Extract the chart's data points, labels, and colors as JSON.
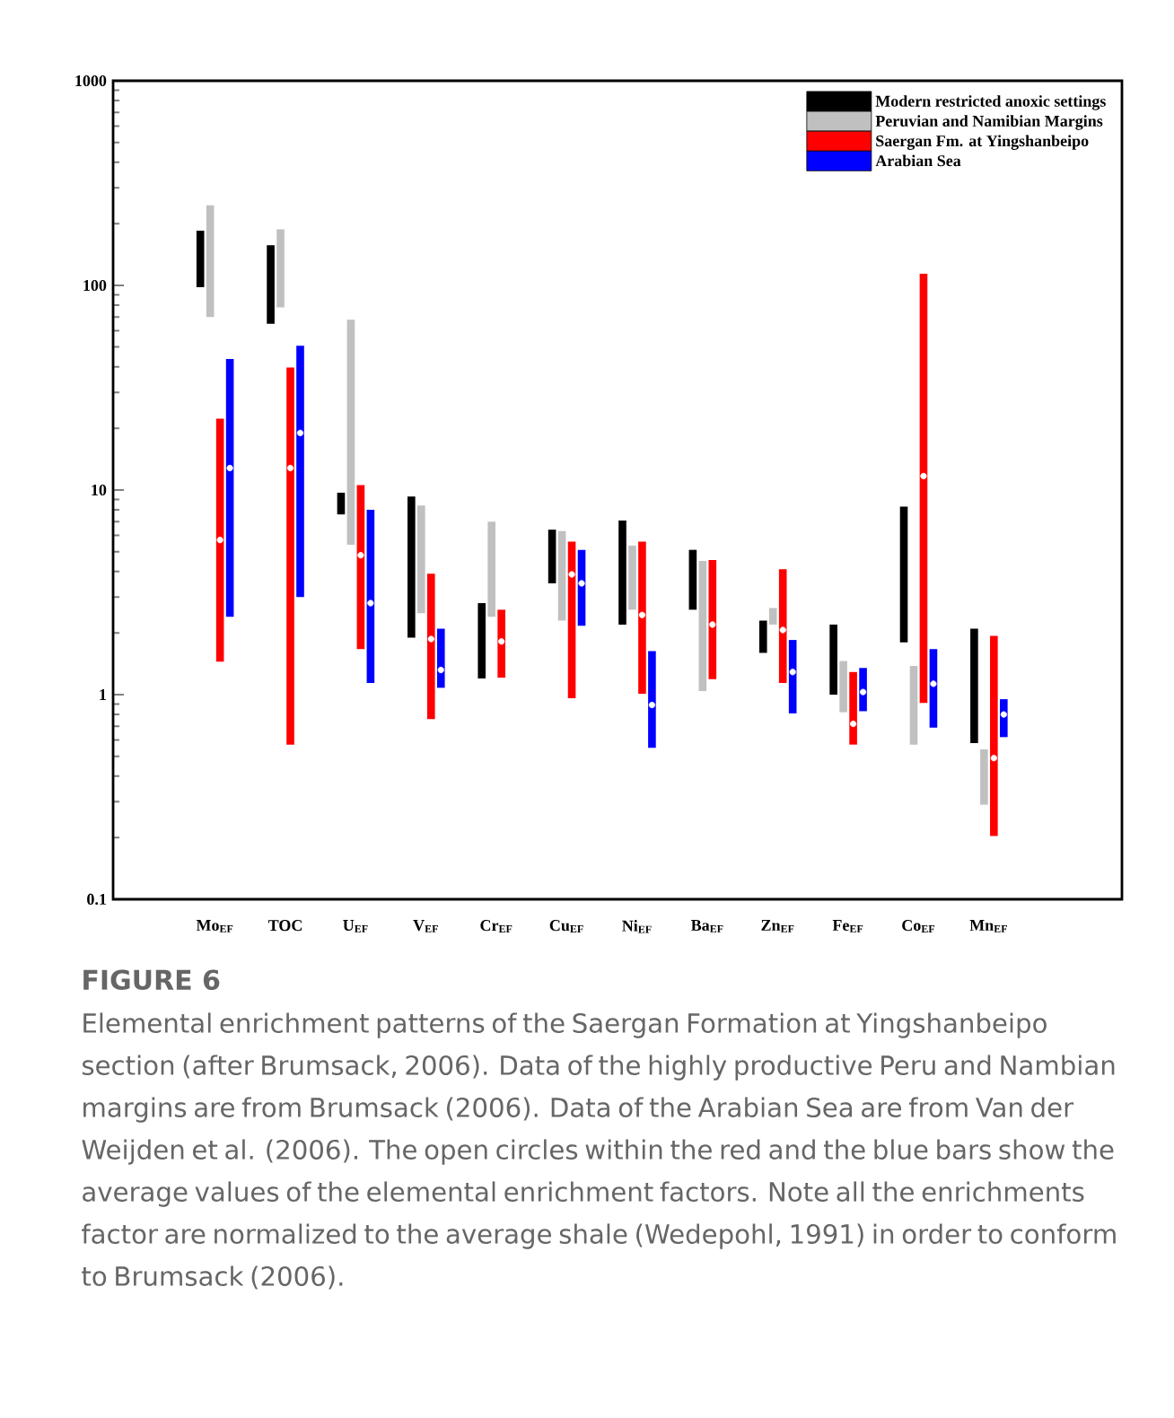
{
  "chart_data": {
    "type": "bar",
    "log": true,
    "ylim": [
      0.1,
      1000
    ],
    "yticks": [
      0.1,
      1,
      10,
      100,
      1000
    ],
    "legend": "top right",
    "grid": false,
    "categories": [
      "Mo$_{EF}$",
      "TOC",
      "U$_{EF}$",
      "V$_{EF}$",
      "Cr$_{EF}$",
      "Cu$_{EF}$",
      "Ni$_{EF}$",
      "Ba$_{EF}$",
      "Zn$_{EF}$",
      "Fe$_{EF}$",
      "Co$_{EF}$",
      "Mn$_{EF}$"
    ],
    "series": [
      {
        "name": "Modern restricted anoxic settings",
        "color": "#000000",
        "base": [
          98,
          65,
          7.6,
          1.9,
          1.2,
          3.5,
          2.2,
          2.6,
          1.6,
          1.0,
          1.8,
          0.58
        ],
        "values": [
          87,
          92,
          2.1,
          7.4,
          1.6,
          2.9,
          4.9,
          2.5,
          0.7,
          1.2,
          6.5,
          1.52
        ]
      },
      {
        "name": "Peruvian and Namibian Margins",
        "color": "#c0c0c0",
        "base": [
          70,
          78,
          5.4,
          2.5,
          2.4,
          2.3,
          2.6,
          1.04,
          2.2,
          0.82,
          0.57,
          0.29
        ],
        "values": [
          176,
          110,
          62.6,
          5.9,
          4.6,
          4.0,
          2.75,
          3.46,
          0.45,
          0.64,
          0.81,
          0.25
        ]
      },
      {
        "name": "Saergan Fm. at Yingshanbeipo",
        "color": "#ff0000",
        "base": [
          1.45,
          0.57,
          1.67,
          0.76,
          1.21,
          0.96,
          1.01,
          1.19,
          1.14,
          0.57,
          0.91,
          0.204
        ],
        "values": [
          20.85,
          39.1,
          8.9,
          3.14,
          1.39,
          4.64,
          4.59,
          3.36,
          2.96,
          0.72,
          113.1,
          1.736
        ]
      },
      {
        "name": "Arabian Sea",
        "color": "#0000ff",
        "base": [
          2.4,
          3.0,
          1.14,
          1.08,
          null,
          2.17,
          0.55,
          null,
          0.81,
          0.83,
          0.69,
          0.62
        ],
        "values": [
          41.3,
          47.7,
          6.86,
          1.02,
          null,
          2.93,
          1.08,
          null,
          1.04,
          0.52,
          0.98,
          0.33
        ]
      },
      {
        "type": "scatter",
        "marker": "circle",
        "color": "#ffffff",
        "values": [
          5.7,
          12.8,
          4.8,
          1.87,
          1.82,
          3.87,
          2.45,
          2.2,
          2.07,
          0.72,
          11.7,
          0.49
        ]
      },
      {
        "type": "scatter",
        "marker": "circle",
        "color": "#ffffff",
        "values": [
          12.8,
          19,
          2.8,
          1.32,
          null,
          3.5,
          0.89,
          null,
          1.29,
          1.03,
          1.13,
          0.8
        ]
      }
    ],
    "annotations": [
      "FIGURE 6",
      "Elemental enrichment patterns of the Saergan Formation at Yingshanbeipo section (after Brumsack, 2006). Data of the highly productive Peru and Nambian margins are from Brumsack (2006). Data of the Arabian Sea are from Van der Weijden et al. (2006). The open circles within the red and the blue bars show the average values of the elemental enrichment factors. Note all the enrichments factor are normalized to the average shale (Wedepohl, 1991) in order to conform to Brumsack (2006)."
    ]
  }
}
